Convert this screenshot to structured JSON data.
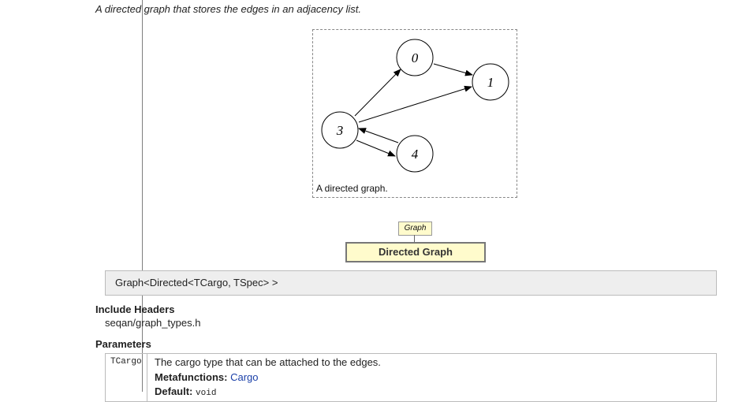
{
  "intro": "A directed graph that stores the edges in an adjacency list.",
  "figure": {
    "caption": "A directed graph.",
    "nodes": [
      "0",
      "1",
      "3",
      "4"
    ],
    "edges": [
      [
        "0",
        "1"
      ],
      [
        "3",
        "0"
      ],
      [
        "3",
        "1"
      ],
      [
        "3",
        "4"
      ],
      [
        "4",
        "3"
      ]
    ]
  },
  "hierarchy": {
    "parent": "Graph",
    "self": "Directed Graph"
  },
  "signature": "Graph<Directed<TCargo, TSpec> >",
  "include": {
    "title": "Include Headers",
    "file": "seqan/graph_types.h"
  },
  "parameters": {
    "title": "Parameters",
    "rows": [
      {
        "name": "TCargo",
        "description": "The cargo type that can be attached to the edges.",
        "metafunctions_label": "Metafunctions:",
        "metafunctions_link": "Cargo",
        "default_label": "Default:",
        "default_value": "void"
      }
    ]
  },
  "colors": {
    "box_bg": "#fffbcc",
    "signature_bg": "#eeeeee",
    "link": "#1a3fa8"
  }
}
